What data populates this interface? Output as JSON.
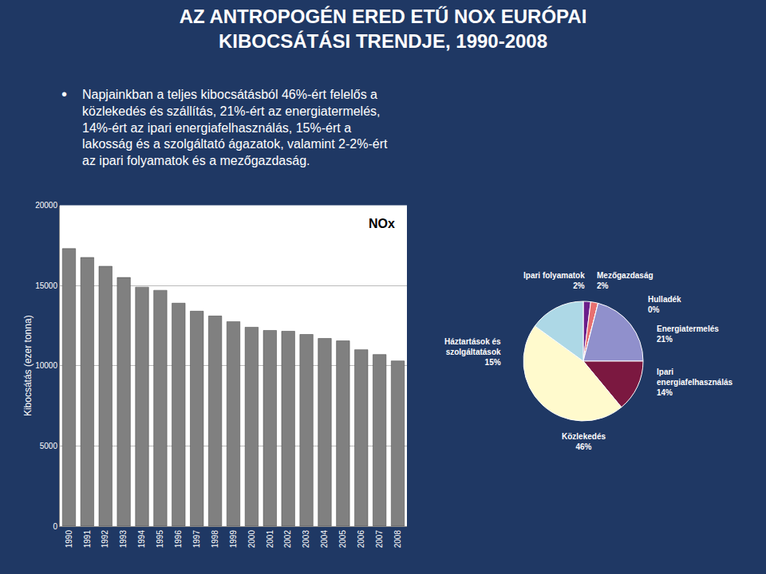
{
  "chart_data": [
    {
      "type": "bar",
      "title": "AZ ANTROPOGÉN ERED ETŰ NOX EURÓPAI\nKIBOCSÁTÁSI TRENDJE, 1990-2008",
      "annotations": [
        "•",
        "Napjainkban a teljes kibocsátásból 46%-ért felelős a\nközlekedés és szállítás, 21%-ért az energiatermelés,\n14%-ért az ipari energiafelhasználás, 15%-ért a\nlakosság és a szolgáltató ágazatok, valamint 2-2%-ért\naz ipari folyamatok és a mezőgazdaság.",
        "NOx"
      ],
      "categories": [
        "1990",
        "1991",
        "1992",
        "1993",
        "1994",
        "1995",
        "1996",
        "1997",
        "1998",
        "1999",
        "2000",
        "2001",
        "2002",
        "2003",
        "2004",
        "2005",
        "2006",
        "2007",
        "2008"
      ],
      "values": [
        17300,
        16750,
        16200,
        15500,
        14900,
        14700,
        13900,
        13400,
        13100,
        12750,
        12400,
        12200,
        12150,
        11950,
        11700,
        11550,
        11000,
        10700,
        10300
      ],
      "color": "#808080",
      "ylabel": "Kibocsátás (ezer tonna)",
      "ylim": [
        0,
        20000
      ],
      "yticks": [
        0,
        5000,
        10000,
        15000,
        20000
      ],
      "grid": true
    },
    {
      "type": "pie",
      "categories": [
        "Ipari folyamatok",
        "Mezőgazdaság",
        "Hulladék",
        "Energiatermelés",
        "Ipari\nenergiafelhasználás",
        "Közlekedés",
        "Háztartások és\nszolgáltatások"
      ],
      "values": [
        2,
        2,
        0,
        21,
        14,
        46,
        15
      ],
      "value_labels": [
        "2%",
        "2%",
        "0%",
        "21%",
        "14%",
        "46%",
        "15%"
      ],
      "data_labels": true,
      "colors": [
        "#6B1E8A",
        "#E87070",
        "#B8D8F0",
        "#9090CC",
        "#7B1840",
        "#FFFACD",
        "#ADD8E6"
      ]
    }
  ]
}
